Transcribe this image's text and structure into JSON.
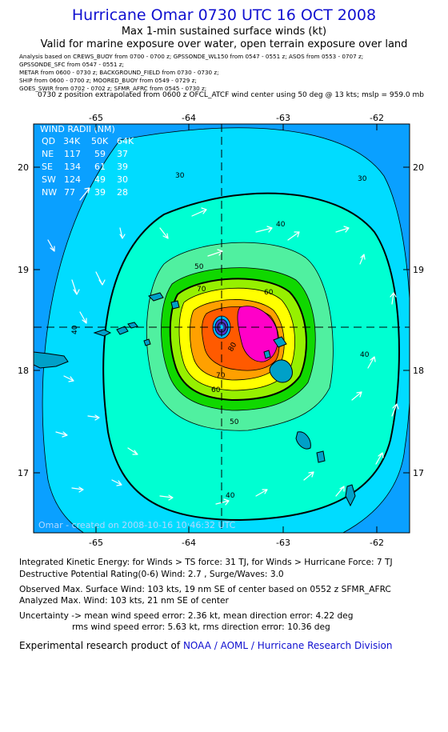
{
  "header": {
    "title": "Hurricane Omar 0730 UTC 16 OCT 2008",
    "subtitle": "Max 1-min sustained surface winds (kt)",
    "valid": "Valid for marine exposure over water, open terrain exposure over land"
  },
  "analysis_sources": [
    "Analysis based on  CREWS_BUOY from 0700 - 0700 z;  GPSSONDE_WL150 from 0547 - 0551 z;  ASOS from 0553 - 0707 z;",
    "GPSSONDE_SFC from 0547 - 0551 z;",
    "METAR from 0600 - 0730 z;  BACKGROUND_FIELD from 0730 - 0730 z;",
    "SHIP from 0600 - 0700 z;  MOORED_BUOY from 0549 - 0729 z;",
    "GOES_SWIR from 0702 - 0702 z;  SFMR_AFRC from 0545 - 0730 z;"
  ],
  "position_note": "0730 z position extrapolated from 0600 z OFCL_ATCF wind center using 50 deg @ 13 kts; mslp = 959.0 mb",
  "map": {
    "x_ticks": [
      "-65",
      "-64",
      "-63",
      "-62"
    ],
    "y_ticks": [
      "20",
      "19",
      "18",
      "17"
    ],
    "center": {
      "lon": -63.6,
      "lat": 18.4
    },
    "contour_labels": [
      "30",
      "30",
      "40",
      "40",
      "40",
      "40",
      "50",
      "50",
      "60",
      "60",
      "70",
      "70",
      "80"
    ],
    "wind_radii": {
      "title": "WIND RADII (NM)",
      "header": [
        "QD",
        "34K",
        "50K",
        "64K"
      ],
      "rows": [
        [
          "NE",
          "117",
          "59",
          "37"
        ],
        [
          "SE",
          "134",
          "61",
          "39"
        ],
        [
          "SW",
          "124",
          "49",
          "30"
        ],
        [
          "NW",
          "77",
          "39",
          "28"
        ]
      ]
    },
    "credit": "Omar - created on 2008-10-16 10:46:32 UTC",
    "colors": {
      "ocean_25": "#0aa0ff",
      "w30": "#00dcff",
      "w40": "#00ffd2",
      "w50": "#50f0a0",
      "w60": "#10d800",
      "w64": "#96f000",
      "w70": "#ffff00",
      "w80": "#ffa000",
      "w90": "#ff5a00",
      "w100": "#ff00c8",
      "eye": "#5032c8",
      "land": "#000000"
    }
  },
  "footer": {
    "ike": "Integrated Kinetic Energy:  for Winds > TS force: 31 TJ,  for Winds > Hurricane Force: 7 TJ",
    "dpr": "Destructive Potential Rating(0-6)   Wind: 2.7 , Surge/Waves: 3.0",
    "obs": "Observed Max. Surface Wind: 103 kts, 19 nm SE of center based on 0552 z SFMR_AFRC",
    "analyzed": "Analyzed Max. Wind: 103 kts, 21 nm SE of center",
    "unc1": "Uncertainty -> mean wind speed error: 2.36 kt,   mean direction error: 4.22 deg",
    "unc2": "rms wind speed error: 5.63 kt,   rms direction error: 10.36 deg",
    "credit_prefix": "Experimental research product of",
    "credit_org": "NOAA / AOML / Hurricane Research Division"
  }
}
